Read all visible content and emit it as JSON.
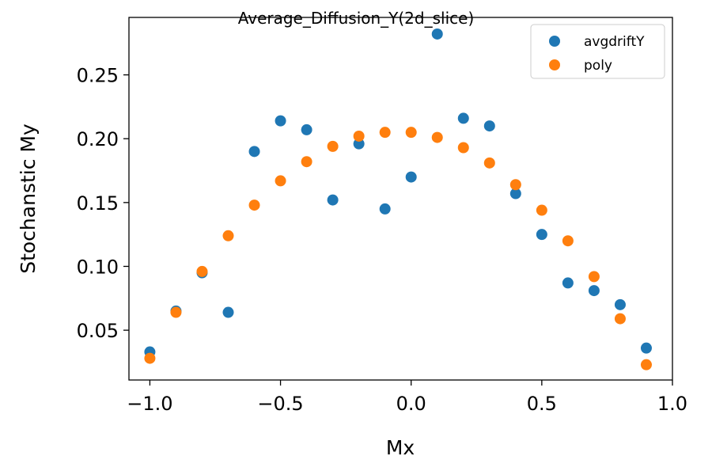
{
  "chart_data": {
    "type": "scatter",
    "title": "Average_Diffusion_Y(2d_slice)",
    "xlabel": "Mx",
    "ylabel": "Stochanstic My",
    "xlim": [
      -1.08,
      1.0
    ],
    "ylim": [
      0.011,
      0.295
    ],
    "x_ticks": [
      -1.0,
      -0.5,
      0.0,
      0.5,
      1.0
    ],
    "x_tick_labels": [
      "−1.0",
      "−0.5",
      "0.0",
      "0.5",
      "1.0"
    ],
    "y_ticks": [
      0.05,
      0.1,
      0.15,
      0.2,
      0.25
    ],
    "y_tick_labels": [
      "0.05",
      "0.10",
      "0.15",
      "0.20",
      "0.25"
    ],
    "grid": false,
    "legend_position": "top-right",
    "x": [
      -1.0,
      -0.9,
      -0.8,
      -0.7,
      -0.6,
      -0.5,
      -0.4,
      -0.3,
      -0.2,
      -0.1,
      0.0,
      0.1,
      0.2,
      0.3,
      0.4,
      0.5,
      0.6,
      0.7,
      0.8,
      0.9
    ],
    "series": [
      {
        "name": "avgdriftY",
        "color": "#1f77b4",
        "values": [
          0.033,
          0.065,
          0.095,
          0.064,
          0.19,
          0.214,
          0.207,
          0.152,
          0.196,
          0.145,
          0.17,
          0.282,
          0.216,
          0.21,
          0.157,
          0.125,
          0.087,
          0.081,
          0.07,
          0.036
        ]
      },
      {
        "name": "poly",
        "color": "#ff7f0e",
        "values": [
          0.028,
          0.064,
          0.096,
          0.124,
          0.148,
          0.167,
          0.182,
          0.194,
          0.202,
          0.205,
          0.205,
          0.201,
          0.193,
          0.181,
          0.164,
          0.144,
          0.12,
          0.092,
          0.059,
          0.023
        ]
      }
    ]
  }
}
